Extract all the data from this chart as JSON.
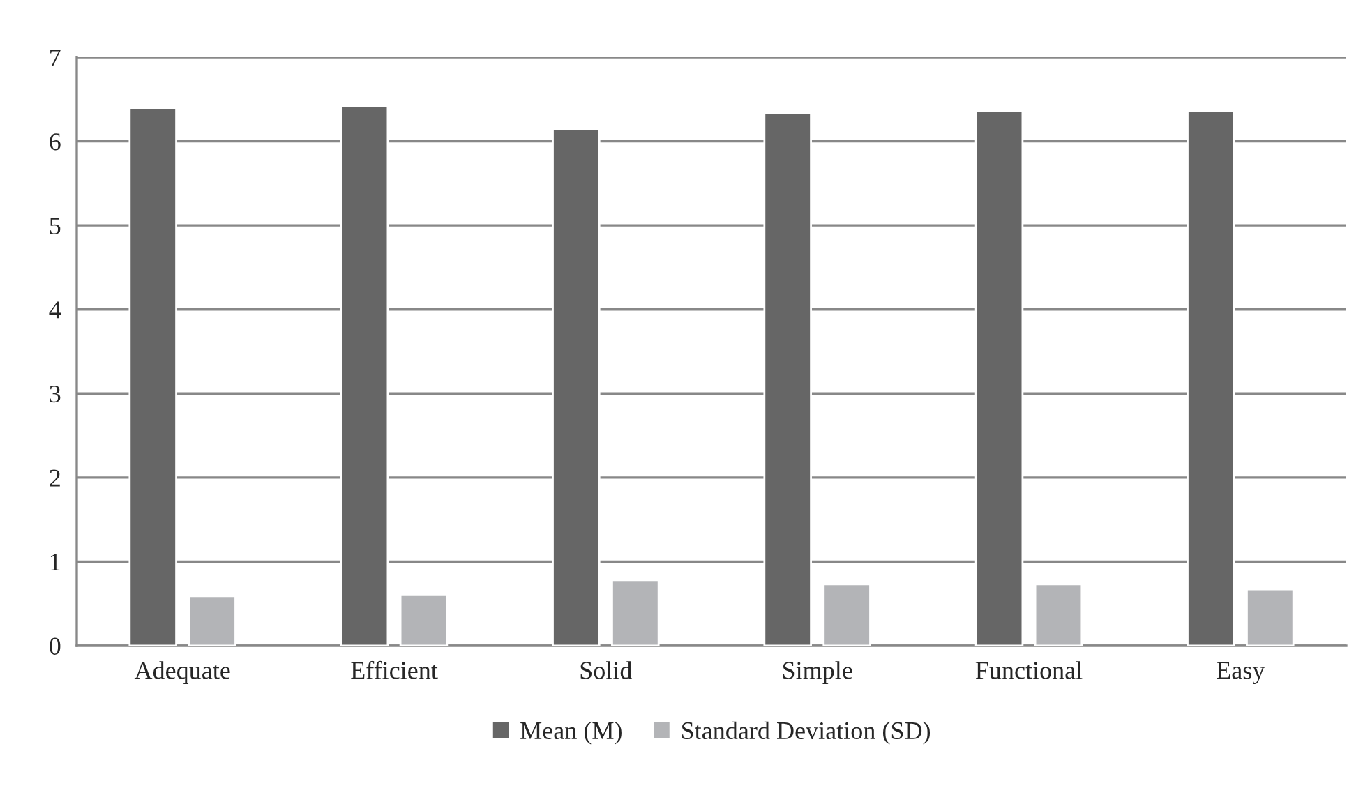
{
  "chart_data": {
    "type": "bar",
    "categories": [
      "Adequate",
      "Efficient",
      "Solid",
      "Simple",
      "Functional",
      "Easy"
    ],
    "series": [
      {
        "name": "Mean (M)",
        "color": "#666666",
        "values": [
          6.39,
          6.42,
          6.14,
          6.34,
          6.36,
          6.36
        ]
      },
      {
        "name": "Standard Deviation (SD)",
        "color": "#b3b4b7",
        "values": [
          0.59,
          0.61,
          0.78,
          0.73,
          0.73,
          0.67
        ]
      }
    ],
    "ylim": [
      0,
      7
    ],
    "yticks": [
      0,
      1,
      2,
      3,
      4,
      5,
      6,
      7
    ],
    "grid": "y",
    "legend": "bottom"
  }
}
